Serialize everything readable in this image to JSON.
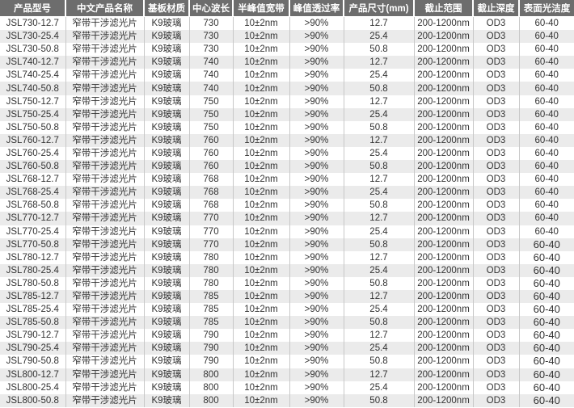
{
  "headers": [
    "产品型号",
    "中文产品名称",
    "基板材质",
    "中心波长",
    "半峰值宽带",
    "峰值透过率",
    "产品尺寸(mm)",
    "截止范围",
    "截止深度",
    "表面光洁度"
  ],
  "rows": [
    [
      "JSL730-12.7",
      "窄带干涉滤光片",
      "K9玻璃",
      "730",
      "10±2nm",
      ">90%",
      "12.7",
      "200-1200nm",
      "OD3",
      "60-40"
    ],
    [
      "JSL730-25.4",
      "窄带干涉滤光片",
      "K9玻璃",
      "730",
      "10±2nm",
      ">90%",
      "25.4",
      "200-1200nm",
      "OD3",
      "60-40"
    ],
    [
      "JSL730-50.8",
      "窄带干涉滤光片",
      "K9玻璃",
      "730",
      "10±2nm",
      ">90%",
      "50.8",
      "200-1200nm",
      "OD3",
      "60-40"
    ],
    [
      "JSL740-12.7",
      "窄带干涉滤光片",
      "K9玻璃",
      "740",
      "10±2nm",
      ">90%",
      "12.7",
      "200-1200nm",
      "OD3",
      "60-40"
    ],
    [
      "JSL740-25.4",
      "窄带干涉滤光片",
      "K9玻璃",
      "740",
      "10±2nm",
      ">90%",
      "25.4",
      "200-1200nm",
      "OD3",
      "60-40"
    ],
    [
      "JSL740-50.8",
      "窄带干涉滤光片",
      "K9玻璃",
      "740",
      "10±2nm",
      ">90%",
      "50.8",
      "200-1200nm",
      "OD3",
      "60-40"
    ],
    [
      "JSL750-12.7",
      "窄带干涉滤光片",
      "K9玻璃",
      "750",
      "10±2nm",
      ">90%",
      "12.7",
      "200-1200nm",
      "OD3",
      "60-40"
    ],
    [
      "JSL750-25.4",
      "窄带干涉滤光片",
      "K9玻璃",
      "750",
      "10±2nm",
      ">90%",
      "25.4",
      "200-1200nm",
      "OD3",
      "60-40"
    ],
    [
      "JSL750-50.8",
      "窄带干涉滤光片",
      "K9玻璃",
      "750",
      "10±2nm",
      ">90%",
      "50.8",
      "200-1200nm",
      "OD3",
      "60-40"
    ],
    [
      "JSL760-12.7",
      "窄带干涉滤光片",
      "K9玻璃",
      "760",
      "10±2nm",
      ">90%",
      "12.7",
      "200-1200nm",
      "OD3",
      "60-40"
    ],
    [
      "JSL760-25.4",
      "窄带干涉滤光片",
      "K9玻璃",
      "760",
      "10±2nm",
      ">90%",
      "25.4",
      "200-1200nm",
      "OD3",
      "60-40"
    ],
    [
      "JSL760-50.8",
      "窄带干涉滤光片",
      "K9玻璃",
      "760",
      "10±2nm",
      ">90%",
      "50.8",
      "200-1200nm",
      "OD3",
      "60-40"
    ],
    [
      "JSL768-12.7",
      "窄带干涉滤光片",
      "K9玻璃",
      "768",
      "10±2nm",
      ">90%",
      "12.7",
      "200-1200nm",
      "OD3",
      "60-40"
    ],
    [
      "JSL768-25.4",
      "窄带干涉滤光片",
      "K9玻璃",
      "768",
      "10±2nm",
      ">90%",
      "25.4",
      "200-1200nm",
      "OD3",
      "60-40"
    ],
    [
      "JSL768-50.8",
      "窄带干涉滤光片",
      "K9玻璃",
      "768",
      "10±2nm",
      ">90%",
      "50.8",
      "200-1200nm",
      "OD3",
      "60-40"
    ],
    [
      "JSL770-12.7",
      "窄带干涉滤光片",
      "K9玻璃",
      "770",
      "10±2nm",
      ">90%",
      "12.7",
      "200-1200nm",
      "OD3",
      "60-40"
    ],
    [
      "JSL770-25.4",
      "窄带干涉滤光片",
      "K9玻璃",
      "770",
      "10±2nm",
      ">90%",
      "25.4",
      "200-1200nm",
      "OD3",
      "60-40"
    ],
    [
      "JSL770-50.8",
      "窄带干涉滤光片",
      "K9玻璃",
      "770",
      "10±2nm",
      ">90%",
      "50.8",
      "200-1200nm",
      "OD3",
      "60-40"
    ],
    [
      "JSL780-12.7",
      "窄带干涉滤光片",
      "K9玻璃",
      "780",
      "10±2nm",
      ">90%",
      "12.7",
      "200-1200nm",
      "OD3",
      "60-40"
    ],
    [
      "JSL780-25.4",
      "窄带干涉滤光片",
      "K9玻璃",
      "780",
      "10±2nm",
      ">90%",
      "25.4",
      "200-1200nm",
      "OD3",
      "60-40"
    ],
    [
      "JSL780-50.8",
      "窄带干涉滤光片",
      "K9玻璃",
      "780",
      "10±2nm",
      ">90%",
      "50.8",
      "200-1200nm",
      "OD3",
      "60-40"
    ],
    [
      "JSL785-12.7",
      "窄带干涉滤光片",
      "K9玻璃",
      "785",
      "10±2nm",
      ">90%",
      "12.7",
      "200-1200nm",
      "OD3",
      "60-40"
    ],
    [
      "JSL785-25.4",
      "窄带干涉滤光片",
      "K9玻璃",
      "785",
      "10±2nm",
      ">90%",
      "25.4",
      "200-1200nm",
      "OD3",
      "60-40"
    ],
    [
      "JSL785-50.8",
      "窄带干涉滤光片",
      "K9玻璃",
      "785",
      "10±2nm",
      ">90%",
      "50.8",
      "200-1200nm",
      "OD3",
      "60-40"
    ],
    [
      "JSL790-12.7",
      "窄带干涉滤光片",
      "K9玻璃",
      "790",
      "10±2nm",
      ">90%",
      "12.7",
      "200-1200nm",
      "OD3",
      "60-40"
    ],
    [
      "JSL790-25.4",
      "窄带干涉滤光片",
      "K9玻璃",
      "790",
      "10±2nm",
      ">90%",
      "25.4",
      "200-1200nm",
      "OD3",
      "60-40"
    ],
    [
      "JSL790-50.8",
      "窄带干涉滤光片",
      "K9玻璃",
      "790",
      "10±2nm",
      ">90%",
      "50.8",
      "200-1200nm",
      "OD3",
      "60-40"
    ],
    [
      "JSL800-12.7",
      "窄带干涉滤光片",
      "K9玻璃",
      "800",
      "10±2nm",
      ">90%",
      "12.7",
      "200-1200nm",
      "OD3",
      "60-40"
    ],
    [
      "JSL800-25.4",
      "窄带干涉滤光片",
      "K9玻璃",
      "800",
      "10±2nm",
      ">90%",
      "25.4",
      "200-1200nm",
      "OD3",
      "60-40"
    ],
    [
      "JSL800-50.8",
      "窄带干涉滤光片",
      "K9玻璃",
      "800",
      "10±2nm",
      ">90%",
      "50.8",
      "200-1200nm",
      "OD3",
      "60-40"
    ]
  ]
}
